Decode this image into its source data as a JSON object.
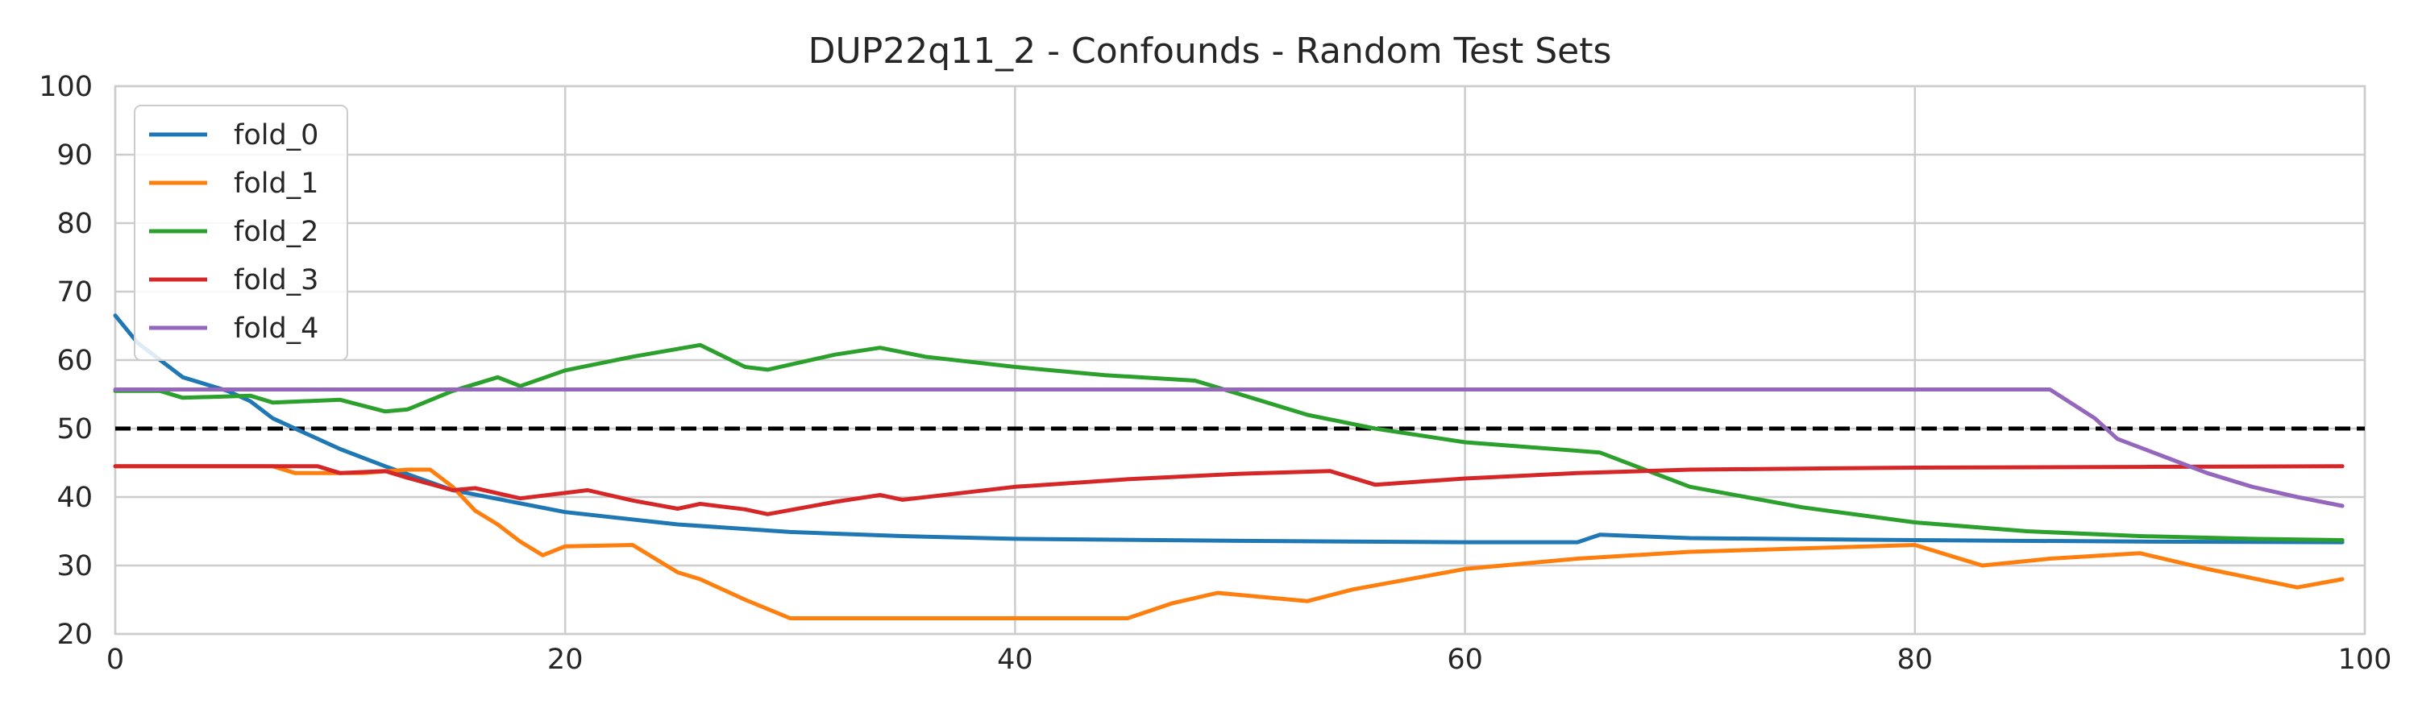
{
  "chart_data": {
    "type": "line",
    "title": "DUP22q11_2 - Confounds - Random Test Sets",
    "xlabel": "",
    "ylabel": "",
    "xlim": [
      0,
      100
    ],
    "ylim": [
      20,
      100
    ],
    "xticks": [
      0,
      20,
      40,
      60,
      80,
      100
    ],
    "yticks": [
      20,
      30,
      40,
      50,
      60,
      70,
      80,
      90,
      100
    ],
    "grid": true,
    "legend_position": "top-left",
    "reference_line": {
      "y": 50,
      "style": "dashed",
      "color": "#000000"
    },
    "series": [
      {
        "name": "fold_0",
        "color": "#1f77b4",
        "points": [
          [
            0,
            66.5
          ],
          [
            1,
            62.5
          ],
          [
            3,
            57.5
          ],
          [
            5,
            55.5
          ],
          [
            6,
            54
          ],
          [
            7,
            51.5
          ],
          [
            10,
            47
          ],
          [
            12,
            44.5
          ],
          [
            15,
            41
          ],
          [
            20,
            37.8
          ],
          [
            25,
            36
          ],
          [
            30,
            34.9
          ],
          [
            35,
            34.3
          ],
          [
            40,
            33.9
          ],
          [
            50,
            33.6
          ],
          [
            60,
            33.4
          ],
          [
            65,
            33.4
          ],
          [
            66,
            34.5
          ],
          [
            70,
            34
          ],
          [
            80,
            33.7
          ],
          [
            90,
            33.5
          ],
          [
            99,
            33.4
          ]
        ]
      },
      {
        "name": "fold_1",
        "color": "#ff7f0e",
        "points": [
          [
            0,
            44.5
          ],
          [
            7,
            44.5
          ],
          [
            8,
            43.5
          ],
          [
            10,
            43.5
          ],
          [
            11,
            43.5
          ],
          [
            13,
            44
          ],
          [
            14,
            44
          ],
          [
            15,
            41.5
          ],
          [
            16,
            38
          ],
          [
            17,
            36
          ],
          [
            18,
            33.5
          ],
          [
            19,
            31.5
          ],
          [
            20,
            32.8
          ],
          [
            23,
            33
          ],
          [
            25,
            29
          ],
          [
            26,
            28
          ],
          [
            28,
            25
          ],
          [
            30,
            22.3
          ],
          [
            35,
            22.3
          ],
          [
            40,
            22.3
          ],
          [
            45,
            22.3
          ],
          [
            47,
            24.5
          ],
          [
            49,
            26
          ],
          [
            53,
            24.8
          ],
          [
            55,
            26.5
          ],
          [
            60,
            29.5
          ],
          [
            65,
            31
          ],
          [
            70,
            32
          ],
          [
            75,
            32.5
          ],
          [
            80,
            33
          ],
          [
            83,
            30
          ],
          [
            86,
            31
          ],
          [
            90,
            31.8
          ],
          [
            93,
            29.5
          ],
          [
            97,
            26.8
          ],
          [
            99,
            28
          ]
        ]
      },
      {
        "name": "fold_2",
        "color": "#2ca02c",
        "points": [
          [
            0,
            55.5
          ],
          [
            2,
            55.5
          ],
          [
            3,
            54.5
          ],
          [
            6,
            54.8
          ],
          [
            7,
            53.8
          ],
          [
            10,
            54.2
          ],
          [
            12,
            52.5
          ],
          [
            13,
            52.8
          ],
          [
            15,
            55.5
          ],
          [
            17,
            57.5
          ],
          [
            18,
            56.2
          ],
          [
            20,
            58.5
          ],
          [
            23,
            60.5
          ],
          [
            26,
            62.2
          ],
          [
            28,
            59
          ],
          [
            29,
            58.6
          ],
          [
            32,
            60.8
          ],
          [
            34,
            61.8
          ],
          [
            36,
            60.5
          ],
          [
            40,
            59
          ],
          [
            44,
            57.8
          ],
          [
            48,
            57
          ],
          [
            50,
            55
          ],
          [
            53,
            52
          ],
          [
            56,
            50
          ],
          [
            60,
            48
          ],
          [
            66,
            46.5
          ],
          [
            70,
            41.5
          ],
          [
            75,
            38.5
          ],
          [
            80,
            36.3
          ],
          [
            85,
            35
          ],
          [
            90,
            34.3
          ],
          [
            95,
            33.9
          ],
          [
            99,
            33.7
          ]
        ]
      },
      {
        "name": "fold_3",
        "color": "#d62728",
        "points": [
          [
            0,
            44.5
          ],
          [
            9,
            44.5
          ],
          [
            10,
            43.5
          ],
          [
            12,
            43.8
          ],
          [
            13,
            42.8
          ],
          [
            15,
            41
          ],
          [
            16,
            41.3
          ],
          [
            18,
            39.8
          ],
          [
            21,
            41
          ],
          [
            23,
            39.5
          ],
          [
            25,
            38.3
          ],
          [
            26,
            39
          ],
          [
            28,
            38.2
          ],
          [
            29,
            37.5
          ],
          [
            32,
            39.3
          ],
          [
            34,
            40.3
          ],
          [
            35,
            39.6
          ],
          [
            40,
            41.5
          ],
          [
            45,
            42.6
          ],
          [
            50,
            43.4
          ],
          [
            54,
            43.8
          ],
          [
            56,
            41.8
          ],
          [
            60,
            42.7
          ],
          [
            65,
            43.5
          ],
          [
            70,
            44
          ],
          [
            80,
            44.3
          ],
          [
            90,
            44.4
          ],
          [
            99,
            44.5
          ]
        ]
      },
      {
        "name": "fold_4",
        "color": "#9467bd",
        "points": [
          [
            0,
            55.7
          ],
          [
            10,
            55.7
          ],
          [
            20,
            55.7
          ],
          [
            40,
            55.7
          ],
          [
            60,
            55.7
          ],
          [
            80,
            55.7
          ],
          [
            86,
            55.7
          ],
          [
            88,
            51.5
          ],
          [
            89,
            48.5
          ],
          [
            91,
            46
          ],
          [
            93,
            43.5
          ],
          [
            95,
            41.5
          ],
          [
            97,
            40
          ],
          [
            99,
            38.7
          ]
        ]
      }
    ]
  }
}
